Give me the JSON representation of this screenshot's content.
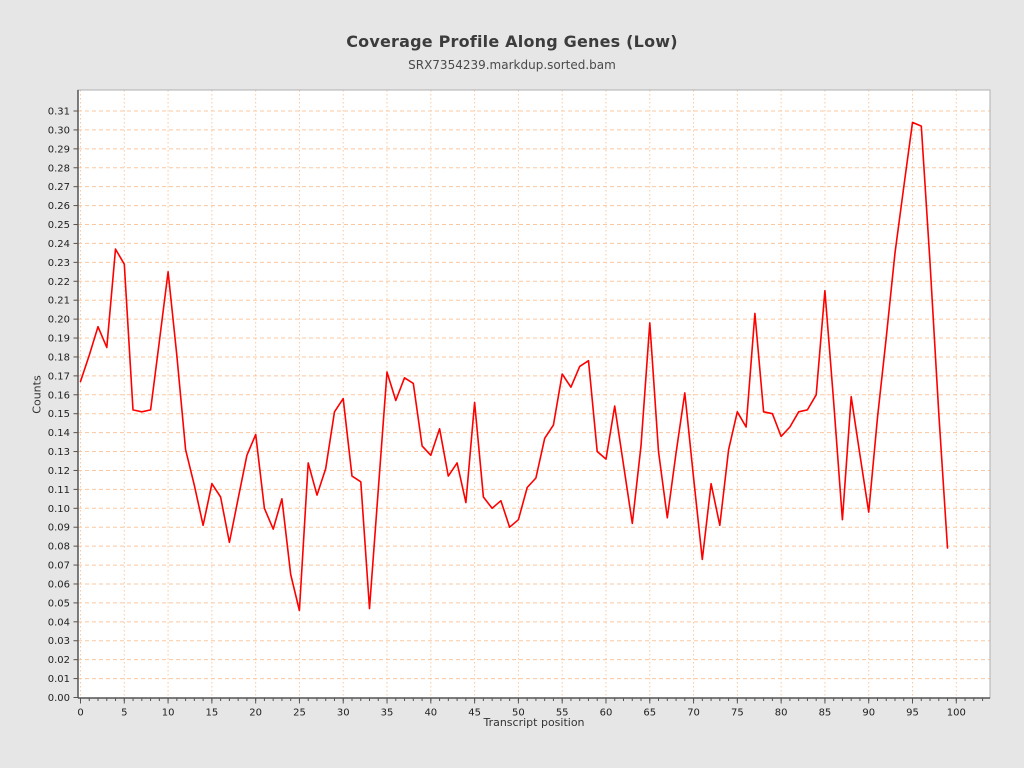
{
  "chart": {
    "title": "Coverage Profile Along Genes (Low)",
    "subtitle": "SRX7354239.markdup.sorted.bam",
    "ylabel": "Counts",
    "xlabel": "Transcript position"
  },
  "chart_data": {
    "type": "line",
    "title": "Coverage Profile Along Genes (Low)",
    "subtitle": "SRX7354239.markdup.sorted.bam",
    "xlabel": "Transcript position",
    "ylabel": "Counts",
    "x_start": 0,
    "x_step": 1,
    "values": [
      0.167,
      0.181,
      0.196,
      0.185,
      0.237,
      0.229,
      0.152,
      0.151,
      0.152,
      0.188,
      0.225,
      0.181,
      0.131,
      0.112,
      0.091,
      0.113,
      0.106,
      0.082,
      0.105,
      0.128,
      0.139,
      0.1,
      0.089,
      0.105,
      0.065,
      0.046,
      0.124,
      0.107,
      0.121,
      0.151,
      0.158,
      0.117,
      0.114,
      0.047,
      0.11,
      0.172,
      0.157,
      0.169,
      0.166,
      0.133,
      0.128,
      0.142,
      0.117,
      0.124,
      0.103,
      0.156,
      0.106,
      0.1,
      0.104,
      0.09,
      0.094,
      0.111,
      0.116,
      0.137,
      0.144,
      0.171,
      0.164,
      0.175,
      0.178,
      0.13,
      0.126,
      0.154,
      0.123,
      0.092,
      0.133,
      0.198,
      0.13,
      0.095,
      0.129,
      0.161,
      0.116,
      0.073,
      0.113,
      0.091,
      0.131,
      0.151,
      0.143,
      0.203,
      0.151,
      0.15,
      0.138,
      0.143,
      0.151,
      0.152,
      0.16,
      0.215,
      0.156,
      0.094,
      0.159,
      0.128,
      0.098,
      0.148,
      0.19,
      0.235,
      0.27,
      0.304,
      0.302,
      0.23,
      0.15,
      0.079
    ],
    "x_ticks": [
      0,
      5,
      10,
      15,
      20,
      25,
      30,
      35,
      40,
      45,
      50,
      55,
      60,
      65,
      70,
      75,
      80,
      85,
      90,
      95,
      100
    ],
    "y_ticks": [
      0.0,
      0.01,
      0.02,
      0.03,
      0.04,
      0.05,
      0.06,
      0.07,
      0.08,
      0.09,
      0.1,
      0.11,
      0.12,
      0.13,
      0.14,
      0.15,
      0.16,
      0.17,
      0.18,
      0.19,
      0.2,
      0.21,
      0.22,
      0.23,
      0.24,
      0.25,
      0.26,
      0.27,
      0.28,
      0.29,
      0.3,
      0.31
    ],
    "ylim": [
      0,
      0.321
    ],
    "xlim": [
      0,
      103.8
    ],
    "grid": true,
    "legend": null,
    "colors": {
      "line": "#fe0000",
      "grid": "#fac8a0",
      "plot_background": "#ffffff",
      "page_background": "#e6e6e6",
      "plot_border": "#b0b0b0",
      "axis": "#545454",
      "tick_text": "#1f1f1f",
      "title_text": "#3c3c3c",
      "subtitle_text": "#4a4a4a"
    }
  }
}
